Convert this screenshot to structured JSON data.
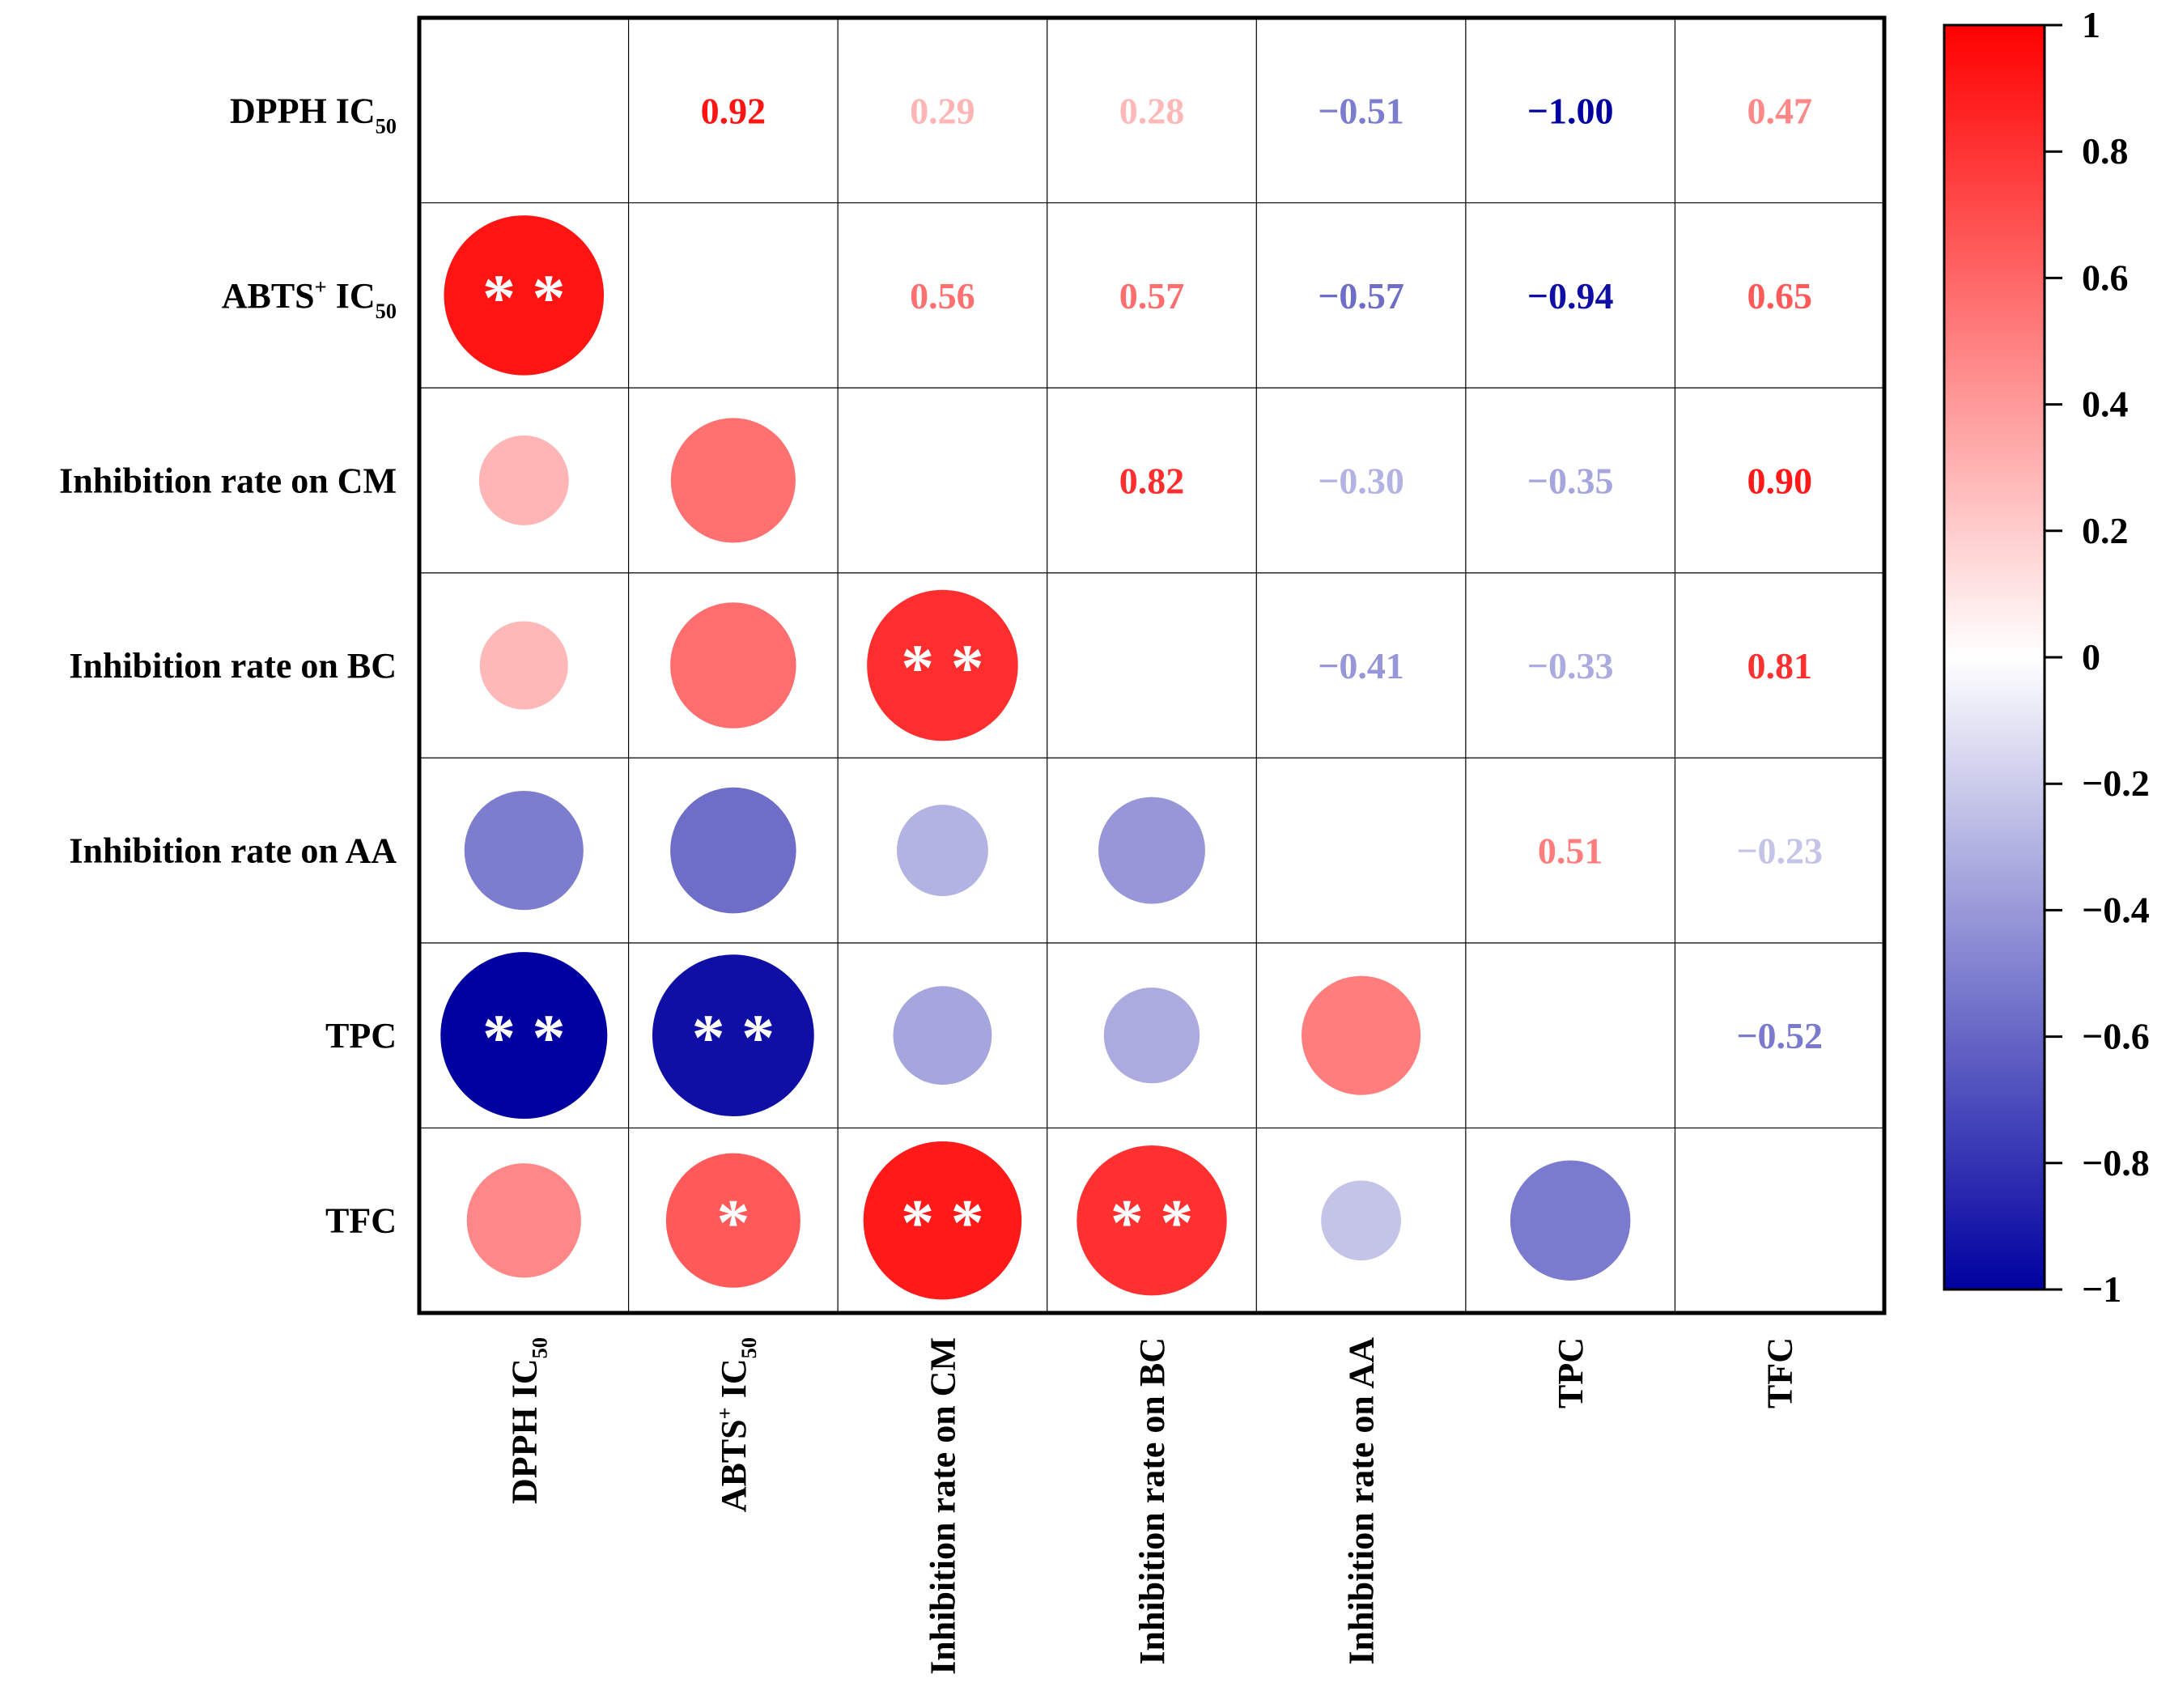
{
  "chart_data": {
    "type": "heatmap",
    "subtype": "correlation-matrix",
    "variables": [
      {
        "label": "DPPH IC",
        "subscript": "50",
        "superscript": ""
      },
      {
        "label": "ABTS",
        "superscript": "+",
        "suffix": " IC",
        "subscript": "50"
      },
      {
        "label": "Inhibition rate on CM",
        "subscript": "",
        "superscript": ""
      },
      {
        "label": "Inhibition rate on BC",
        "subscript": "",
        "superscript": ""
      },
      {
        "label": "Inhibition rate on AA",
        "subscript": "",
        "superscript": ""
      },
      {
        "label": "TPC",
        "subscript": "",
        "superscript": ""
      },
      {
        "label": "TFC",
        "subscript": "",
        "superscript": ""
      }
    ],
    "upper_triangle_values": [
      {
        "row": 0,
        "col": 1,
        "value": 0.92,
        "text": "0.92"
      },
      {
        "row": 0,
        "col": 2,
        "value": 0.29,
        "text": "0.29"
      },
      {
        "row": 0,
        "col": 3,
        "value": 0.28,
        "text": "0.28"
      },
      {
        "row": 0,
        "col": 4,
        "value": -0.51,
        "text": "−0.51"
      },
      {
        "row": 0,
        "col": 5,
        "value": -1.0,
        "text": "−1.00"
      },
      {
        "row": 0,
        "col": 6,
        "value": 0.47,
        "text": "0.47"
      },
      {
        "row": 1,
        "col": 2,
        "value": 0.56,
        "text": "0.56"
      },
      {
        "row": 1,
        "col": 3,
        "value": 0.57,
        "text": "0.57"
      },
      {
        "row": 1,
        "col": 4,
        "value": -0.57,
        "text": "−0.57"
      },
      {
        "row": 1,
        "col": 5,
        "value": -0.94,
        "text": "−0.94"
      },
      {
        "row": 1,
        "col": 6,
        "value": 0.65,
        "text": "0.65"
      },
      {
        "row": 2,
        "col": 3,
        "value": 0.82,
        "text": "0.82"
      },
      {
        "row": 2,
        "col": 4,
        "value": -0.3,
        "text": "−0.30"
      },
      {
        "row": 2,
        "col": 5,
        "value": -0.35,
        "text": "−0.35"
      },
      {
        "row": 2,
        "col": 6,
        "value": 0.9,
        "text": "0.90"
      },
      {
        "row": 3,
        "col": 4,
        "value": -0.41,
        "text": "−0.41"
      },
      {
        "row": 3,
        "col": 5,
        "value": -0.33,
        "text": "−0.33"
      },
      {
        "row": 3,
        "col": 6,
        "value": 0.81,
        "text": "0.81"
      },
      {
        "row": 4,
        "col": 5,
        "value": 0.51,
        "text": "0.51"
      },
      {
        "row": 4,
        "col": 6,
        "value": -0.23,
        "text": "−0.23"
      },
      {
        "row": 5,
        "col": 6,
        "value": -0.52,
        "text": "−0.52"
      }
    ],
    "lower_triangle_circles": [
      {
        "row": 1,
        "col": 0,
        "value": 0.92,
        "sig": "**"
      },
      {
        "row": 2,
        "col": 0,
        "value": 0.29,
        "sig": ""
      },
      {
        "row": 2,
        "col": 1,
        "value": 0.56,
        "sig": ""
      },
      {
        "row": 3,
        "col": 0,
        "value": 0.28,
        "sig": ""
      },
      {
        "row": 3,
        "col": 1,
        "value": 0.57,
        "sig": ""
      },
      {
        "row": 3,
        "col": 2,
        "value": 0.82,
        "sig": "**"
      },
      {
        "row": 4,
        "col": 0,
        "value": -0.51,
        "sig": ""
      },
      {
        "row": 4,
        "col": 1,
        "value": -0.57,
        "sig": ""
      },
      {
        "row": 4,
        "col": 2,
        "value": -0.3,
        "sig": ""
      },
      {
        "row": 4,
        "col": 3,
        "value": -0.41,
        "sig": ""
      },
      {
        "row": 5,
        "col": 0,
        "value": -1.0,
        "sig": "**"
      },
      {
        "row": 5,
        "col": 1,
        "value": -0.94,
        "sig": "**"
      },
      {
        "row": 5,
        "col": 2,
        "value": -0.35,
        "sig": ""
      },
      {
        "row": 5,
        "col": 3,
        "value": -0.33,
        "sig": ""
      },
      {
        "row": 5,
        "col": 4,
        "value": 0.51,
        "sig": ""
      },
      {
        "row": 6,
        "col": 0,
        "value": 0.47,
        "sig": ""
      },
      {
        "row": 6,
        "col": 1,
        "value": 0.65,
        "sig": "*"
      },
      {
        "row": 6,
        "col": 2,
        "value": 0.9,
        "sig": "**"
      },
      {
        "row": 6,
        "col": 3,
        "value": 0.81,
        "sig": "**"
      },
      {
        "row": 6,
        "col": 4,
        "value": -0.23,
        "sig": ""
      },
      {
        "row": 6,
        "col": 5,
        "value": -0.52,
        "sig": ""
      }
    ],
    "colorbar": {
      "range": [
        -1,
        1
      ],
      "ticks": [
        1,
        0.8,
        0.6,
        0.4,
        0.2,
        0,
        -0.2,
        -0.4,
        -0.6,
        -0.8,
        -1
      ],
      "tick_labels": [
        "1",
        "0.8",
        "0.6",
        "0.4",
        "0.2",
        "0",
        "−0.2",
        "−0.4",
        "−0.6",
        "−0.8",
        "−1"
      ],
      "colors": {
        "max": "#ff0000",
        "mid": "#ffffff",
        "min": "#0000a0"
      }
    }
  }
}
